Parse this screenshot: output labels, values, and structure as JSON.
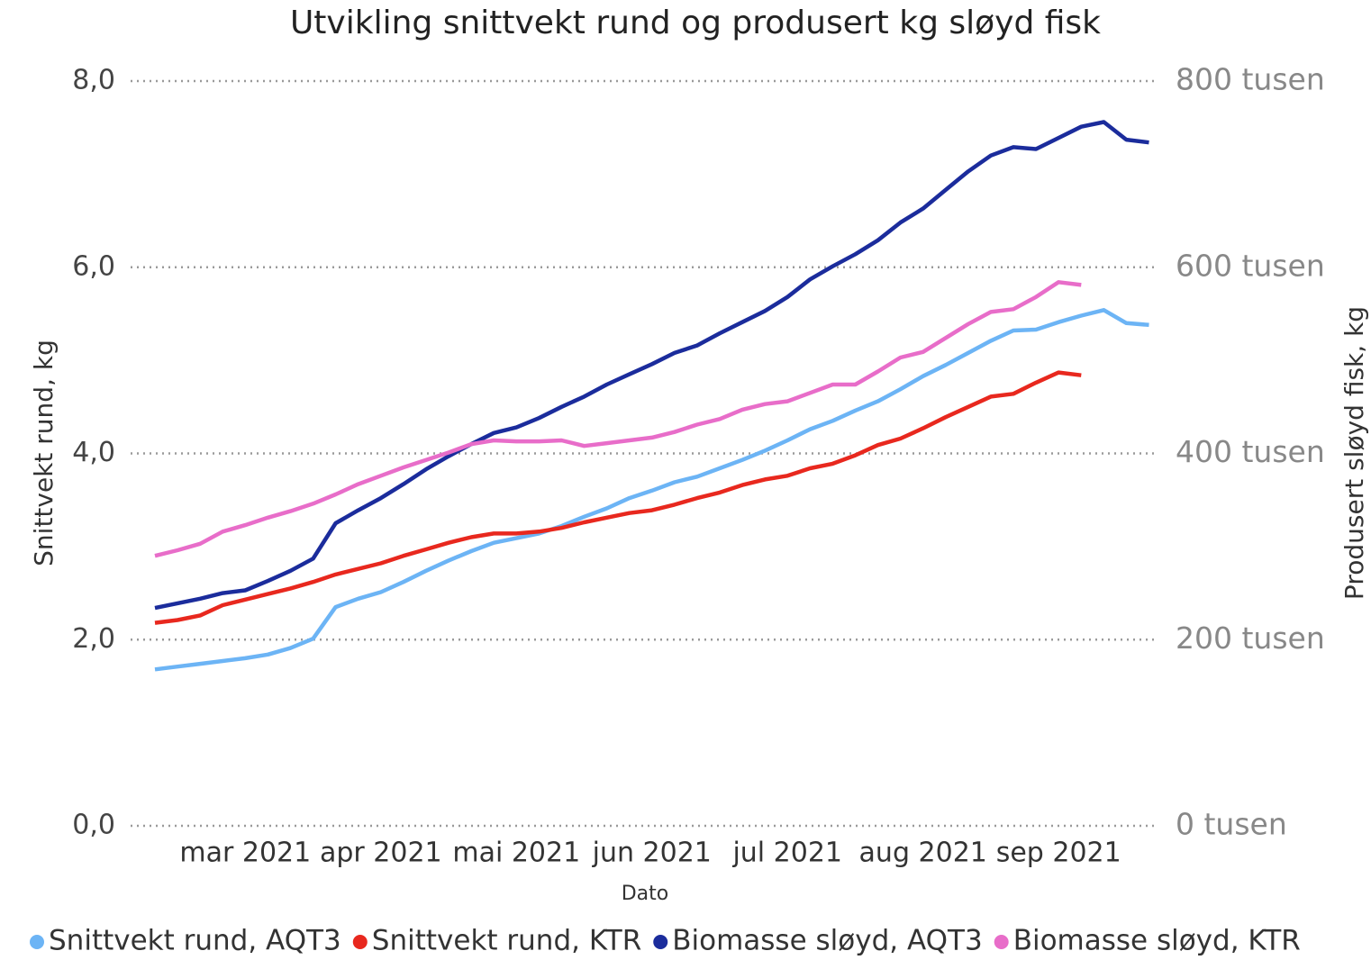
{
  "chart_data": {
    "type": "line",
    "title": "Utvikling snittvekt rund og produsert kg sløyd fisk",
    "x_label": "Dato",
    "y_label": "Snittvekt rund, kg",
    "y2_label": "Produsert sløyd fisk, kg",
    "categories": [
      null,
      null,
      null,
      null,
      "mar 2021",
      null,
      null,
      null,
      null,
      null,
      "apr 2021",
      null,
      null,
      null,
      null,
      null,
      "mai 2021",
      null,
      null,
      null,
      null,
      null,
      "jun 2021",
      null,
      null,
      null,
      null,
      null,
      "jul 2021",
      null,
      null,
      null,
      null,
      null,
      "aug 2021",
      null,
      null,
      null,
      null,
      null,
      "sep 2021",
      null,
      null,
      null,
      null
    ],
    "ylim": [
      0,
      8
    ],
    "yticks": [
      {
        "value": 0,
        "label": "0,0"
      },
      {
        "value": 2,
        "label": "2,0"
      },
      {
        "value": 4,
        "label": "4,0"
      },
      {
        "value": 6,
        "label": "6,0"
      },
      {
        "value": 8,
        "label": "8,0"
      }
    ],
    "y2lim": [
      0,
      800000
    ],
    "y2ticks": [
      {
        "value": 0,
        "label": "0 tusen"
      },
      {
        "value": 200000,
        "label": "200 tusen"
      },
      {
        "value": 400000,
        "label": "400 tusen"
      },
      {
        "value": 600000,
        "label": "600 tusen"
      },
      {
        "value": 800000,
        "label": "800 tusen"
      }
    ],
    "grid": true,
    "legend": "bottom",
    "series": [
      {
        "name": "Snittvekt rund, AQT3",
        "color": "#6cb4f5",
        "axis": "y",
        "values": [
          1.68,
          1.71,
          1.74,
          1.77,
          1.8,
          1.84,
          1.91,
          2.01,
          2.35,
          2.44,
          2.51,
          2.62,
          2.74,
          2.85,
          2.95,
          3.04,
          3.09,
          3.14,
          3.22,
          3.32,
          3.41,
          3.52,
          3.6,
          3.69,
          3.75,
          3.84,
          3.93,
          4.03,
          4.14,
          4.26,
          4.35,
          4.46,
          4.56,
          4.69,
          4.83,
          4.95,
          5.08,
          5.21,
          5.32,
          5.33,
          5.41,
          5.48,
          5.54,
          5.4,
          5.38
        ]
      },
      {
        "name": "Snittvekt rund, KTR",
        "color": "#e8281e",
        "axis": "y",
        "values": [
          2.18,
          2.21,
          2.26,
          2.37,
          2.43,
          2.49,
          2.55,
          2.62,
          2.7,
          2.76,
          2.82,
          2.9,
          2.97,
          3.04,
          3.1,
          3.14,
          3.14,
          3.16,
          3.2,
          3.26,
          3.31,
          3.36,
          3.39,
          3.45,
          3.52,
          3.58,
          3.66,
          3.72,
          3.76,
          3.84,
          3.89,
          3.98,
          4.09,
          4.16,
          4.27,
          4.39,
          4.5,
          4.61,
          4.64,
          4.76,
          4.87,
          4.84,
          null,
          null,
          null
        ]
      },
      {
        "name": "Biomasse sløyd, AQT3",
        "color": "#1b2c9c",
        "axis": "y2",
        "values": [
          234000,
          239000,
          244000,
          250000,
          253000,
          263000,
          274000,
          287000,
          325000,
          339000,
          352000,
          367000,
          383000,
          397000,
          410000,
          422000,
          428000,
          438000,
          450000,
          461000,
          474000,
          485000,
          496000,
          508000,
          516000,
          529000,
          541000,
          553000,
          568000,
          587000,
          601000,
          614000,
          629000,
          648000,
          663000,
          683000,
          703000,
          720000,
          729000,
          727000,
          739000,
          751000,
          756000,
          737000,
          734000
        ]
      },
      {
        "name": "Biomasse sløyd, KTR",
        "color": "#e86dc9",
        "axis": "y2",
        "values": [
          290000,
          296000,
          303000,
          316000,
          323000,
          331000,
          338000,
          346000,
          356000,
          367000,
          376000,
          385000,
          393000,
          401000,
          410000,
          414000,
          413000,
          413000,
          414000,
          408000,
          411000,
          414000,
          417000,
          423000,
          431000,
          437000,
          447000,
          453000,
          456000,
          465000,
          474000,
          474000,
          488000,
          503000,
          509000,
          524000,
          539000,
          552000,
          555000,
          568000,
          584000,
          581000,
          null,
          null,
          null
        ]
      }
    ]
  }
}
